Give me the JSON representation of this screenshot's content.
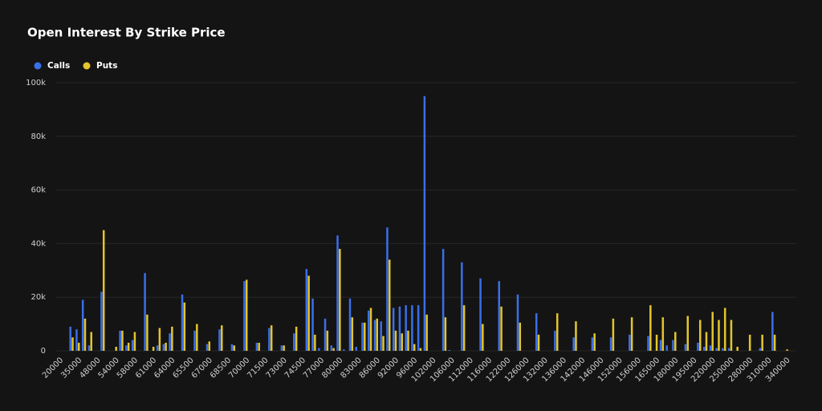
{
  "chart_data": {
    "type": "bar",
    "title": "Open Interest By Strike Price",
    "categories": [
      "20000",
      null,
      null,
      "35000",
      null,
      null,
      "48000",
      null,
      null,
      "54000",
      null,
      null,
      "58000",
      null,
      null,
      "61000",
      null,
      null,
      "64000",
      null,
      null,
      "65500",
      null,
      null,
      "67000",
      null,
      null,
      "68500",
      null,
      null,
      "70000",
      null,
      null,
      "71500",
      null,
      null,
      "73000",
      null,
      null,
      "74500",
      null,
      null,
      "77000",
      null,
      null,
      "80000",
      null,
      null,
      "83000",
      null,
      null,
      "86000",
      null,
      null,
      "92000",
      null,
      null,
      "96000",
      null,
      null,
      "102000",
      null,
      null,
      "106000",
      null,
      null,
      "112000",
      null,
      null,
      "116000",
      null,
      null,
      "122000",
      null,
      null,
      "126000",
      null,
      null,
      "132000",
      null,
      null,
      "136000",
      null,
      null,
      "142000",
      null,
      null,
      "146000",
      null,
      null,
      "152000",
      null,
      null,
      "156000",
      null,
      null,
      "165000",
      null,
      null,
      "180000",
      null,
      null,
      "195000",
      null,
      null,
      "220000",
      null,
      null,
      "250000",
      null,
      null,
      "280000",
      null,
      null,
      "310000",
      null,
      null,
      "340000",
      null,
      null
    ],
    "series": [
      {
        "name": "Calls",
        "color": "#3b6fe8",
        "values": [
          0,
          0,
          9000,
          8000,
          19000,
          2000,
          0,
          22000,
          0,
          0,
          7500,
          2000,
          4000,
          0,
          29000,
          0,
          2000,
          2500,
          6500,
          0,
          21000,
          0,
          7500,
          0,
          2500,
          0,
          8000,
          0,
          2500,
          0,
          26000,
          0,
          3000,
          0,
          8500,
          0,
          2000,
          0,
          6500,
          0,
          30500,
          19500,
          1000,
          12000,
          2000,
          43000,
          500,
          19500,
          1500,
          10500,
          15000,
          11500,
          11000,
          46000,
          16000,
          16500,
          17000,
          17000,
          17000,
          95000,
          0,
          0,
          38000,
          300,
          0,
          33000,
          0,
          0,
          27000,
          0,
          0,
          26000,
          0,
          0,
          21000,
          0,
          0,
          14000,
          0,
          0,
          7500,
          0,
          0,
          5000,
          0,
          0,
          5000,
          0,
          0,
          5000,
          0,
          0,
          6000,
          0,
          0,
          5500,
          0,
          4000,
          2000,
          4000,
          0,
          2500,
          0,
          3000,
          1500,
          2000,
          1000,
          1000,
          1000,
          0,
          0,
          0,
          0,
          1000,
          0,
          14500,
          0,
          0,
          0,
          0
        ]
      },
      {
        "name": "Puts",
        "color": "#e3c52c",
        "values": [
          0,
          0,
          5000,
          3000,
          12000,
          7000,
          0,
          45000,
          0,
          1500,
          7500,
          3000,
          7000,
          0,
          13500,
          1500,
          8500,
          3000,
          9000,
          0,
          18000,
          0,
          10000,
          0,
          3500,
          0,
          9500,
          0,
          2000,
          0,
          26500,
          0,
          3000,
          0,
          9500,
          0,
          2000,
          0,
          9000,
          0,
          28000,
          6000,
          0,
          7500,
          1000,
          38000,
          0,
          12500,
          0,
          10500,
          16000,
          12000,
          5500,
          34000,
          7500,
          6500,
          7500,
          2500,
          1000,
          13500,
          0,
          0,
          12500,
          0,
          0,
          17000,
          0,
          0,
          10000,
          0,
          0,
          16500,
          0,
          0,
          10500,
          0,
          0,
          6000,
          0,
          0,
          14000,
          0,
          0,
          11000,
          0,
          0,
          6500,
          0,
          0,
          12000,
          0,
          0,
          12500,
          0,
          0,
          17000,
          6000,
          12500,
          0,
          7000,
          0,
          13000,
          0,
          11500,
          7000,
          14500,
          11500,
          16000,
          11500,
          1500,
          0,
          6000,
          0,
          6000,
          0,
          6000,
          0,
          500,
          0,
          0
        ]
      }
    ],
    "ylim": [
      0,
      100000
    ],
    "yticks": [
      0,
      {
        "value": 20000,
        "label": "20k"
      },
      {
        "value": 40000,
        "label": "40k"
      },
      {
        "value": 60000,
        "label": "60k"
      },
      {
        "value": 80000,
        "label": "80k"
      },
      {
        "value": 100000,
        "label": "100k"
      }
    ],
    "grid": true,
    "legend": "top-left"
  }
}
